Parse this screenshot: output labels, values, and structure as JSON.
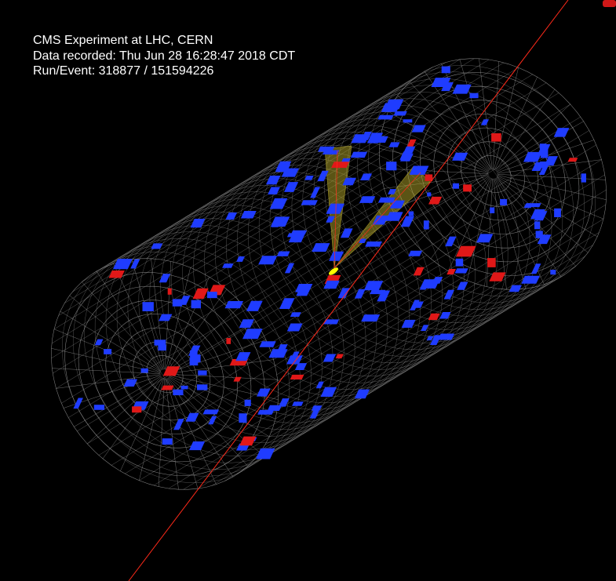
{
  "event_info": {
    "line1": "CMS Experiment at LHC, CERN",
    "line2": "Data recorded: Thu Jun 28 16:28:47 2018 CDT",
    "line3": "Run/Event: 318877 / 151594226"
  },
  "colors": {
    "background": "#000000",
    "detector_wireframe": "#b9b9b9",
    "hadronic_deposit": "#1f3cff",
    "electromagnetic_deposit": "#e01818",
    "jet_cone": "#b5a82a",
    "vertex": "#ffff00",
    "track": "#ff2a1a"
  }
}
